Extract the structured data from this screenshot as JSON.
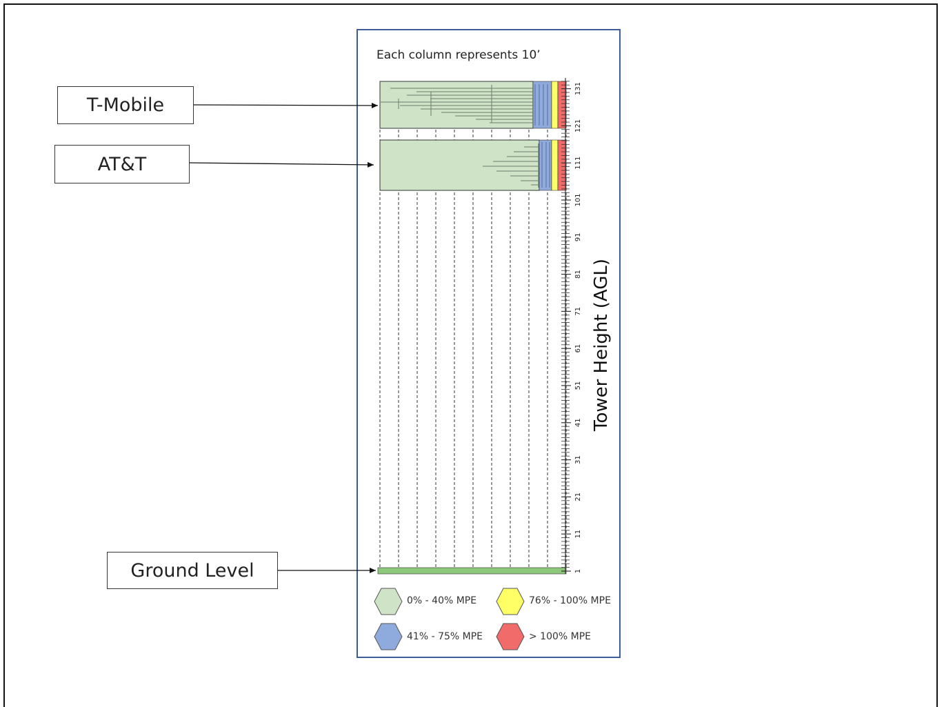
{
  "carriers": [
    {
      "name": "T-Mobile"
    },
    {
      "name": "AT&T"
    }
  ],
  "ground_label": "Ground Level",
  "panel_caption": "Each column represents 10’",
  "axis_title": "Tower Height (AGL)",
  "tick_labels": [
    "1",
    "11",
    "21",
    "31",
    "41",
    "51",
    "61",
    "71",
    "81",
    "91",
    "101",
    "111",
    "121",
    "131"
  ],
  "legend": [
    {
      "label": "0% - 40% MPE",
      "color": "#cfe3c6"
    },
    {
      "label": "76% - 100% MPE",
      "color": "#ffff66"
    },
    {
      "label": "41% - 75% MPE",
      "color": "#8faadc"
    },
    {
      "label": "> 100% MPE",
      "color": "#f26b6b"
    }
  ],
  "colors": {
    "low": "#cfe3c6",
    "moderate": "#8faadc",
    "high": "#ffff66",
    "exceed": "#f26b6b",
    "ground": "#8cc87a",
    "panel_border": "#3d5a99"
  }
}
